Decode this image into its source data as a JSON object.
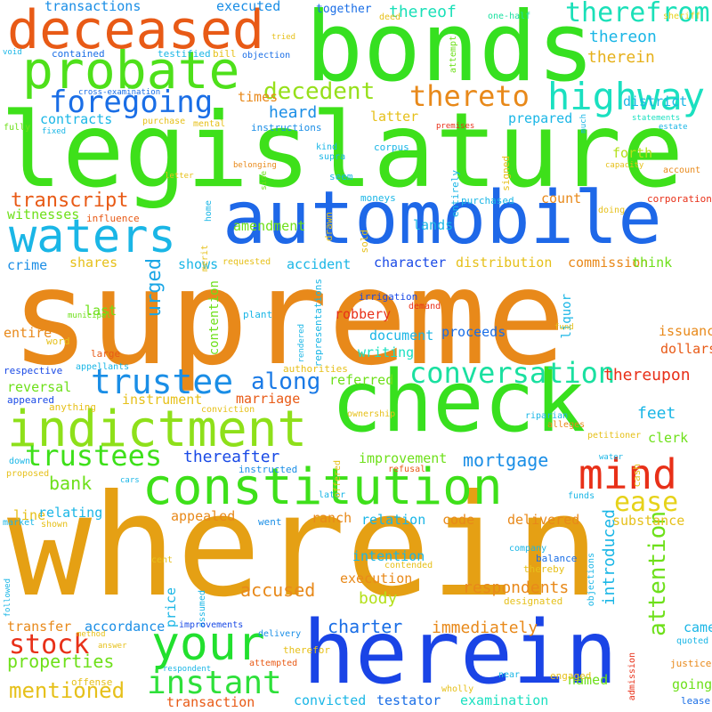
{
  "words": [
    {
      "text": "supreme",
      "color": "#e8891a"
    },
    {
      "text": "wherein",
      "color": "#e5a014"
    },
    {
      "text": "legislature",
      "color": "#3ee01a"
    },
    {
      "text": "bonds",
      "color": "#36e020"
    },
    {
      "text": "automobile",
      "color": "#1e68e8"
    },
    {
      "text": "herein",
      "color": "#1a44e6"
    },
    {
      "text": "check",
      "color": "#38e01e"
    },
    {
      "text": "deceased",
      "color": "#e85a16"
    },
    {
      "text": "constitution",
      "color": "#3ee01a"
    },
    {
      "text": "indictment",
      "color": "#8ee01a"
    },
    {
      "text": "probate",
      "color": "#4ee01a"
    },
    {
      "text": "mind",
      "color": "#e83018"
    },
    {
      "text": "your",
      "color": "#22e02e"
    },
    {
      "text": "waters",
      "color": "#1ab6e6"
    },
    {
      "text": "highway",
      "color": "#1ae0c0"
    },
    {
      "text": "foregoing",
      "color": "#1a6ee6"
    },
    {
      "text": "trustee",
      "color": "#1a8ee6"
    },
    {
      "text": "trustees",
      "color": "#3ee01a"
    },
    {
      "text": "instant",
      "color": "#2ee03a"
    },
    {
      "text": "conversation",
      "color": "#1ae0a0"
    },
    {
      "text": "thereto",
      "color": "#e8891a"
    },
    {
      "text": "ease",
      "color": "#e6d21a"
    },
    {
      "text": "therefrom",
      "color": "#1ae0b8"
    },
    {
      "text": "decedent",
      "color": "#96e01a"
    },
    {
      "text": "along",
      "color": "#1a7ae6"
    },
    {
      "text": "attention",
      "color": "#6ee01a"
    },
    {
      "text": "stock",
      "color": "#e83018"
    },
    {
      "text": "mentioned",
      "color": "#e6c01a"
    },
    {
      "text": "urged",
      "color": "#1aa6e6"
    },
    {
      "text": "transcript",
      "color": "#e85a16"
    },
    {
      "text": "accused",
      "color": "#e8891a"
    },
    {
      "text": "bank",
      "color": "#6ee01a"
    },
    {
      "text": "mortgage",
      "color": "#1a8ee6"
    },
    {
      "text": "charter",
      "color": "#1a6ee6"
    },
    {
      "text": "properties",
      "color": "#6ee01a"
    },
    {
      "text": "body",
      "color": "#b4e01a"
    },
    {
      "text": "thereon",
      "color": "#1ab6e6"
    },
    {
      "text": "therein",
      "color": "#e6b01a"
    },
    {
      "text": "heard",
      "color": "#1a8ee6"
    },
    {
      "text": "thereof",
      "color": "#1ae0b8"
    },
    {
      "text": "feet",
      "color": "#1ab6e6"
    },
    {
      "text": "thereafter",
      "color": "#1a4ae6"
    },
    {
      "text": "thereupon",
      "color": "#e83018"
    },
    {
      "text": "respondents",
      "color": "#e8891a"
    },
    {
      "text": "immediately",
      "color": "#e8891a"
    },
    {
      "text": "introduced",
      "color": "#1ab6e6"
    },
    {
      "text": "examination",
      "color": "#1ae0c0"
    },
    {
      "text": "executed",
      "color": "#1a8ee6"
    },
    {
      "text": "transactions",
      "color": "#1a8ee6"
    },
    {
      "text": "latter",
      "color": "#e6c01a"
    },
    {
      "text": "prepared",
      "color": "#1ab6e6"
    },
    {
      "text": "forth",
      "color": "#b4e01a"
    },
    {
      "text": "district",
      "color": "#1ab6e6"
    },
    {
      "text": "times",
      "color": "#e8891a"
    },
    {
      "text": "contracts",
      "color": "#1ab6e6"
    },
    {
      "text": "lands",
      "color": "#1ab6e6"
    },
    {
      "text": "count",
      "color": "#e8891a"
    },
    {
      "text": "amendment",
      "color": "#6ee01a"
    },
    {
      "text": "witnesses",
      "color": "#6ee01a"
    },
    {
      "text": "accident",
      "color": "#1ab6e6"
    },
    {
      "text": "shares",
      "color": "#e6c01a"
    },
    {
      "text": "shows",
      "color": "#1ab6e6"
    },
    {
      "text": "crime",
      "color": "#1a8ee6"
    },
    {
      "text": "character",
      "color": "#1a4ae6"
    },
    {
      "text": "distribution",
      "color": "#e6c01a"
    },
    {
      "text": "commission",
      "color": "#e8891a"
    },
    {
      "text": "think",
      "color": "#6ee01a"
    },
    {
      "text": "robbery",
      "color": "#e83018"
    },
    {
      "text": "proceeds",
      "color": "#1a6ee6"
    },
    {
      "text": "document",
      "color": "#1ab6e6"
    },
    {
      "text": "writing",
      "color": "#1ae0c0"
    },
    {
      "text": "last",
      "color": "#6ee01a"
    },
    {
      "text": "entire",
      "color": "#e8891a"
    },
    {
      "text": "issuance",
      "color": "#e8891a"
    },
    {
      "text": "dollars",
      "color": "#e85a16"
    },
    {
      "text": "liquor",
      "color": "#1ab6e6"
    },
    {
      "text": "contention",
      "color": "#6ee01a"
    },
    {
      "text": "reversal",
      "color": "#6ee01a"
    },
    {
      "text": "referred",
      "color": "#6ee01a"
    },
    {
      "text": "instrument",
      "color": "#e6c01a"
    },
    {
      "text": "marriage",
      "color": "#e85a16"
    },
    {
      "text": "clerk",
      "color": "#6ee01a"
    },
    {
      "text": "line",
      "color": "#e6c01a"
    },
    {
      "text": "relating",
      "color": "#1ab6e6"
    },
    {
      "text": "improvement",
      "color": "#6ee01a"
    },
    {
      "text": "appealed",
      "color": "#e8891a"
    },
    {
      "text": "ranch",
      "color": "#e8891a"
    },
    {
      "text": "relation",
      "color": "#1ab6e6"
    },
    {
      "text": "code",
      "color": "#e8891a"
    },
    {
      "text": "delivered",
      "color": "#e8891a"
    },
    {
      "text": "substance",
      "color": "#e6c01a"
    },
    {
      "text": "intention",
      "color": "#1ab6e6"
    },
    {
      "text": "execution",
      "color": "#e8891a"
    },
    {
      "text": "transfer",
      "color": "#e8891a"
    },
    {
      "text": "accordance",
      "color": "#1a8ee6"
    },
    {
      "text": "price",
      "color": "#1ab6e6"
    },
    {
      "text": "transaction",
      "color": "#e85a16"
    },
    {
      "text": "convicted",
      "color": "#1ab6e6"
    },
    {
      "text": "testator",
      "color": "#1a6ee6"
    },
    {
      "text": "named",
      "color": "#6ee01a"
    },
    {
      "text": "came",
      "color": "#1ab6e6"
    },
    {
      "text": "going",
      "color": "#6ee01a"
    },
    {
      "text": "together",
      "color": "#1a6ee6"
    },
    {
      "text": "deed",
      "color": "#e6c01a"
    },
    {
      "text": "one-half",
      "color": "#1ae0a0"
    },
    {
      "text": "sheriff",
      "color": "#e6d21a"
    },
    {
      "text": "tried",
      "color": "#e6c01a"
    },
    {
      "text": "void",
      "color": "#1ab6e6"
    },
    {
      "text": "contained",
      "color": "#1a6ee6"
    },
    {
      "text": "testified",
      "color": "#1ab6e6"
    },
    {
      "text": "bill",
      "color": "#e6c01a"
    },
    {
      "text": "objection",
      "color": "#1a6ee6"
    },
    {
      "text": "attempt",
      "color": "#6ee01a"
    },
    {
      "text": "cross-examination",
      "color": "#1a6ee6"
    },
    {
      "text": "purchase",
      "color": "#e6c01a"
    },
    {
      "text": "mental",
      "color": "#e6c01a"
    },
    {
      "text": "instructions",
      "color": "#1a8ee6"
    },
    {
      "text": "premises",
      "color": "#e83018"
    },
    {
      "text": "much",
      "color": "#1ab6e6"
    },
    {
      "text": "statements",
      "color": "#1ae0c0"
    },
    {
      "text": "estate",
      "color": "#1ab6e6"
    },
    {
      "text": "fully",
      "color": "#6ee01a"
    },
    {
      "text": "fixed",
      "color": "#1ab6e6"
    },
    {
      "text": "kind",
      "color": "#1ab6e6"
    },
    {
      "text": "corpus",
      "color": "#1ab6e6"
    },
    {
      "text": "supra",
      "color": "#1ab6e6"
    },
    {
      "text": "letter",
      "color": "#e6c01a"
    },
    {
      "text": "belonging",
      "color": "#e8891a"
    },
    {
      "text": "capacity",
      "color": "#e6c01a"
    },
    {
      "text": "account",
      "color": "#e8891a"
    },
    {
      "text": "seem",
      "color": "#1ab6e6"
    },
    {
      "text": "entirely",
      "color": "#1ab6e6"
    },
    {
      "text": "signed",
      "color": "#e6c01a"
    },
    {
      "text": "side",
      "color": "#6ee01a"
    },
    {
      "text": "moneys",
      "color": "#1ab6e6"
    },
    {
      "text": "purchased",
      "color": "#1ab6e6"
    },
    {
      "text": "corporation",
      "color": "#e83018"
    },
    {
      "text": "doing",
      "color": "#e6c01a"
    },
    {
      "text": "influence",
      "color": "#e85a16"
    },
    {
      "text": "home",
      "color": "#1ab6e6"
    },
    {
      "text": "merit",
      "color": "#e6c01a"
    },
    {
      "text": "drawn",
      "color": "#e6c01a"
    },
    {
      "text": "sold",
      "color": "#e6c01a"
    },
    {
      "text": "requested",
      "color": "#e6c01a"
    },
    {
      "text": "municipal",
      "color": "#6ee01a"
    },
    {
      "text": "plant",
      "color": "#1ab6e6"
    },
    {
      "text": "representations",
      "color": "#1ab6e6"
    },
    {
      "text": "rendered",
      "color": "#1ab6e6"
    },
    {
      "text": "irrigation",
      "color": "#1a4ae6"
    },
    {
      "text": "demand",
      "color": "#e83018"
    },
    {
      "text": "fund",
      "color": "#e6c01a"
    },
    {
      "text": "word",
      "color": "#e6c01a"
    },
    {
      "text": "large",
      "color": "#e85a16"
    },
    {
      "text": "respective",
      "color": "#1a4ae6"
    },
    {
      "text": "appellants",
      "color": "#1ab6e6"
    },
    {
      "text": "authorities",
      "color": "#e6c01a"
    },
    {
      "text": "appeared",
      "color": "#1a4ae6"
    },
    {
      "text": "anything",
      "color": "#e6c01a"
    },
    {
      "text": "conviction",
      "color": "#e6c01a"
    },
    {
      "text": "ownership",
      "color": "#e6c01a"
    },
    {
      "text": "riparian",
      "color": "#1ab6e6"
    },
    {
      "text": "alleges",
      "color": "#e8891a"
    },
    {
      "text": "petitioner",
      "color": "#e6c01a"
    },
    {
      "text": "instructed",
      "color": "#1a8ee6"
    },
    {
      "text": "down",
      "color": "#1ab6e6"
    },
    {
      "text": "proposed",
      "color": "#e6c01a"
    },
    {
      "text": "cars",
      "color": "#1ab6e6"
    },
    {
      "text": "later",
      "color": "#1ab6e6"
    },
    {
      "text": "offered",
      "color": "#e6c01a"
    },
    {
      "text": "refusal",
      "color": "#e85a16"
    },
    {
      "text": "water",
      "color": "#1ab6e6"
    },
    {
      "text": "cash",
      "color": "#e6c01a"
    },
    {
      "text": "funds",
      "color": "#1ab6e6"
    },
    {
      "text": "market",
      "color": "#1ab6e6"
    },
    {
      "text": "shown",
      "color": "#e6c01a"
    },
    {
      "text": "went",
      "color": "#1a8ee6"
    },
    {
      "text": "company",
      "color": "#1ab6e6"
    },
    {
      "text": "balance",
      "color": "#1a6ee6"
    },
    {
      "text": "thereby",
      "color": "#e6c01a"
    },
    {
      "text": "cent",
      "color": "#e6c01a"
    },
    {
      "text": "contended",
      "color": "#e6c01a"
    },
    {
      "text": "objections",
      "color": "#1ab6e6"
    },
    {
      "text": "designated",
      "color": "#e6c01a"
    },
    {
      "text": "assumed",
      "color": "#1ab6e6"
    },
    {
      "text": "followed",
      "color": "#1ab6e6"
    },
    {
      "text": "method",
      "color": "#e6c01a"
    },
    {
      "text": "improvements",
      "color": "#1a4ae6"
    },
    {
      "text": "answer",
      "color": "#e6c01a"
    },
    {
      "text": "delivery",
      "color": "#1a8ee6"
    },
    {
      "text": "therefor",
      "color": "#e6c01a"
    },
    {
      "text": "attempted",
      "color": "#e85a16"
    },
    {
      "text": "respondent",
      "color": "#1ab6e6"
    },
    {
      "text": "offense",
      "color": "#e6c01a"
    },
    {
      "text": "wholly",
      "color": "#e6c01a"
    },
    {
      "text": "near",
      "color": "#1ab6e6"
    },
    {
      "text": "engaged",
      "color": "#e6c01a"
    },
    {
      "text": "admission",
      "color": "#e83018"
    },
    {
      "text": "quoted",
      "color": "#1ab6e6"
    },
    {
      "text": "justice",
      "color": "#e8891a"
    },
    {
      "text": "lease",
      "color": "#1a6ee6"
    }
  ]
}
